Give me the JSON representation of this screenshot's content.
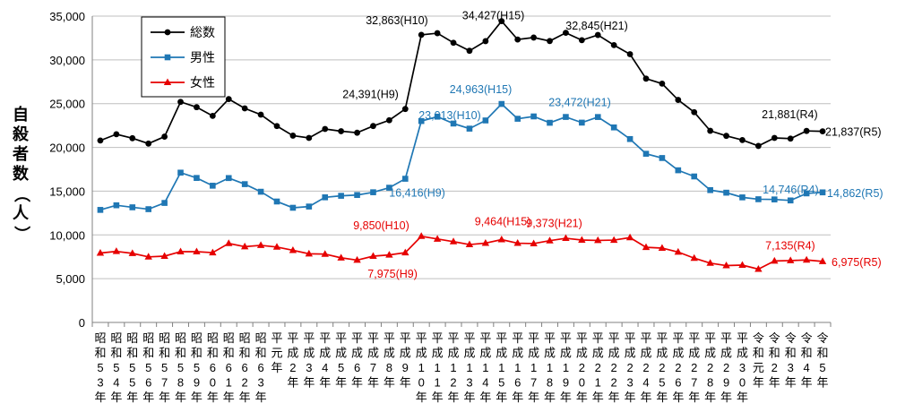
{
  "chart_data": {
    "type": "line",
    "title": "",
    "ylabel": "自殺者数（人）",
    "ylabel_chars": [
      "自",
      "殺",
      "者",
      "数",
      "（",
      "人",
      "）"
    ],
    "ylim": [
      0,
      35000
    ],
    "yticks": [
      0,
      5000,
      10000,
      15000,
      20000,
      25000,
      30000,
      35000
    ],
    "ytick_labels": [
      "0",
      "5,000",
      "10,000",
      "15,000",
      "20,000",
      "25,000",
      "30,000",
      "35,000"
    ],
    "grid": true,
    "categories": [
      "昭和53年",
      "昭和54年",
      "昭和55年",
      "昭和56年",
      "昭和57年",
      "昭和58年",
      "昭和59年",
      "昭和60年",
      "昭和61年",
      "昭和62年",
      "昭和63年",
      "平元年",
      "平成2年",
      "平成3年",
      "平成4年",
      "平成5年",
      "平成6年",
      "平成7年",
      "平成8年",
      "平成9年",
      "平成10年",
      "平成11年",
      "平成12年",
      "平成13年",
      "平成14年",
      "平成15年",
      "平成16年",
      "平成17年",
      "平成18年",
      "平成19年",
      "平成20年",
      "平成21年",
      "平成22年",
      "平成23年",
      "平成24年",
      "平成25年",
      "平成26年",
      "平成27年",
      "平成28年",
      "平成29年",
      "平成30年",
      "令和元年",
      "令和2年",
      "令和3年",
      "令和4年",
      "令和5年"
    ],
    "category_labels": [
      [
        "昭",
        "和",
        "5",
        "3",
        "年"
      ],
      [
        "昭",
        "和",
        "5",
        "4",
        "年"
      ],
      [
        "昭",
        "和",
        "5",
        "5",
        "年"
      ],
      [
        "昭",
        "和",
        "5",
        "6",
        "年"
      ],
      [
        "昭",
        "和",
        "5",
        "7",
        "年"
      ],
      [
        "昭",
        "和",
        "5",
        "8",
        "年"
      ],
      [
        "昭",
        "和",
        "5",
        "9",
        "年"
      ],
      [
        "昭",
        "和",
        "6",
        "0",
        "年"
      ],
      [
        "昭",
        "和",
        "6",
        "1",
        "年"
      ],
      [
        "昭",
        "和",
        "6",
        "2",
        "年"
      ],
      [
        "昭",
        "和",
        "6",
        "3",
        "年"
      ],
      [
        "平",
        "元",
        "年"
      ],
      [
        "平",
        "成",
        "2",
        "年"
      ],
      [
        "平",
        "成",
        "3",
        "年"
      ],
      [
        "平",
        "成",
        "4",
        "年"
      ],
      [
        "平",
        "成",
        "5",
        "年"
      ],
      [
        "平",
        "成",
        "6",
        "年"
      ],
      [
        "平",
        "成",
        "7",
        "年"
      ],
      [
        "平",
        "成",
        "8",
        "年"
      ],
      [
        "平",
        "成",
        "9",
        "年"
      ],
      [
        "平",
        "成",
        "1",
        "0",
        "年"
      ],
      [
        "平",
        "成",
        "1",
        "1",
        "年"
      ],
      [
        "平",
        "成",
        "1",
        "2",
        "年"
      ],
      [
        "平",
        "成",
        "1",
        "3",
        "年"
      ],
      [
        "平",
        "成",
        "1",
        "4",
        "年"
      ],
      [
        "平",
        "成",
        "1",
        "5",
        "年"
      ],
      [
        "平",
        "成",
        "1",
        "6",
        "年"
      ],
      [
        "平",
        "成",
        "1",
        "7",
        "年"
      ],
      [
        "平",
        "成",
        "1",
        "8",
        "年"
      ],
      [
        "平",
        "成",
        "1",
        "9",
        "年"
      ],
      [
        "平",
        "成",
        "2",
        "0",
        "年"
      ],
      [
        "平",
        "成",
        "2",
        "1",
        "年"
      ],
      [
        "平",
        "成",
        "2",
        "2",
        "年"
      ],
      [
        "平",
        "成",
        "2",
        "3",
        "年"
      ],
      [
        "平",
        "成",
        "2",
        "4",
        "年"
      ],
      [
        "平",
        "成",
        "2",
        "5",
        "年"
      ],
      [
        "平",
        "成",
        "2",
        "6",
        "年"
      ],
      [
        "平",
        "成",
        "2",
        "7",
        "年"
      ],
      [
        "平",
        "成",
        "2",
        "8",
        "年"
      ],
      [
        "平",
        "成",
        "2",
        "9",
        "年"
      ],
      [
        "平",
        "成",
        "3",
        "0",
        "年"
      ],
      [
        "令",
        "和",
        "元",
        "年"
      ],
      [
        "令",
        "和",
        "2",
        "年"
      ],
      [
        "令",
        "和",
        "3",
        "年"
      ],
      [
        "令",
        "和",
        "4",
        "年"
      ],
      [
        "令",
        "和",
        "5",
        "年"
      ]
    ],
    "legend": {
      "position": "top-left"
    },
    "series": [
      {
        "name": "総数",
        "color": "#000000",
        "marker": "circle",
        "values": [
          20788,
          21503,
          21048,
          20434,
          21228,
          25202,
          24596,
          23599,
          25524,
          24460,
          23742,
          22436,
          21346,
          21084,
          22104,
          21851,
          21679,
          22445,
          23104,
          24391,
          32863,
          33048,
          31957,
          31042,
          32143,
          34427,
          32325,
          32552,
          32155,
          33093,
          32249,
          32845,
          31690,
          30651,
          27858,
          27283,
          25427,
          24025,
          21897,
          21321,
          20840,
          20169,
          21081,
          21007,
          21881,
          21837
        ]
      },
      {
        "name": "男性",
        "color": "#1f77b4",
        "marker": "square",
        "values": [
          12859,
          13386,
          13155,
          12942,
          13654,
          17116,
          16508,
          15624,
          16497,
          15802,
          14934,
          13818,
          13102,
          13242,
          14296,
          14468,
          14560,
          14874,
          15393,
          16416,
          23013,
          23512,
          22727,
          22144,
          23080,
          24963,
          23272,
          23540,
          22813,
          23478,
          22831,
          23472,
          22283,
          20955,
          19273,
          18787,
          17386,
          16681,
          15121,
          14826,
          14290,
          14078,
          14055,
          13939,
          14746,
          14862
        ]
      },
      {
        "name": "女性",
        "color": "#e60000",
        "marker": "triangle",
        "values": [
          7929,
          8117,
          7893,
          7492,
          7574,
          8086,
          8088,
          7975,
          9027,
          8658,
          8808,
          8618,
          8244,
          7842,
          7808,
          7383,
          7119,
          7571,
          7711,
          7975,
          9850,
          9536,
          9230,
          8898,
          9063,
          9464,
          9053,
          9012,
          9342,
          9615,
          9418,
          9373,
          9407,
          9696,
          8585,
          8496,
          8041,
          7344,
          6776,
          6495,
          6550,
          6091,
          7026,
          7068,
          7135,
          6975
        ]
      }
    ],
    "annotations": [
      {
        "series": 0,
        "index": 19,
        "text": "24,391(H9)"
      },
      {
        "series": 0,
        "index": 20,
        "text": "32,863(H10)"
      },
      {
        "series": 0,
        "index": 25,
        "text": "34,427(H15)"
      },
      {
        "series": 0,
        "index": 31,
        "text": "32,845(H21)"
      },
      {
        "series": 0,
        "index": 44,
        "text": "21,881(R4)"
      },
      {
        "series": 0,
        "index": 45,
        "text": "21,837(R5)"
      },
      {
        "series": 1,
        "index": 19,
        "text": "16,416(H9)"
      },
      {
        "series": 1,
        "index": 20,
        "text": "23,013(H10)"
      },
      {
        "series": 1,
        "index": 25,
        "text": "24,963(H15)"
      },
      {
        "series": 1,
        "index": 31,
        "text": "23,472(H21)"
      },
      {
        "series": 1,
        "index": 44,
        "text": "14,746(R4)"
      },
      {
        "series": 1,
        "index": 45,
        "text": "14,862(R5)"
      },
      {
        "series": 2,
        "index": 19,
        "text": "7,975(H9)"
      },
      {
        "series": 2,
        "index": 20,
        "text": "9,850(H10)"
      },
      {
        "series": 2,
        "index": 25,
        "text": "9,464(H15)"
      },
      {
        "series": 2,
        "index": 31,
        "text": "9,373(H21)"
      },
      {
        "series": 2,
        "index": 44,
        "text": "7,135(R4)"
      },
      {
        "series": 2,
        "index": 45,
        "text": "6,975(R5)"
      }
    ]
  }
}
